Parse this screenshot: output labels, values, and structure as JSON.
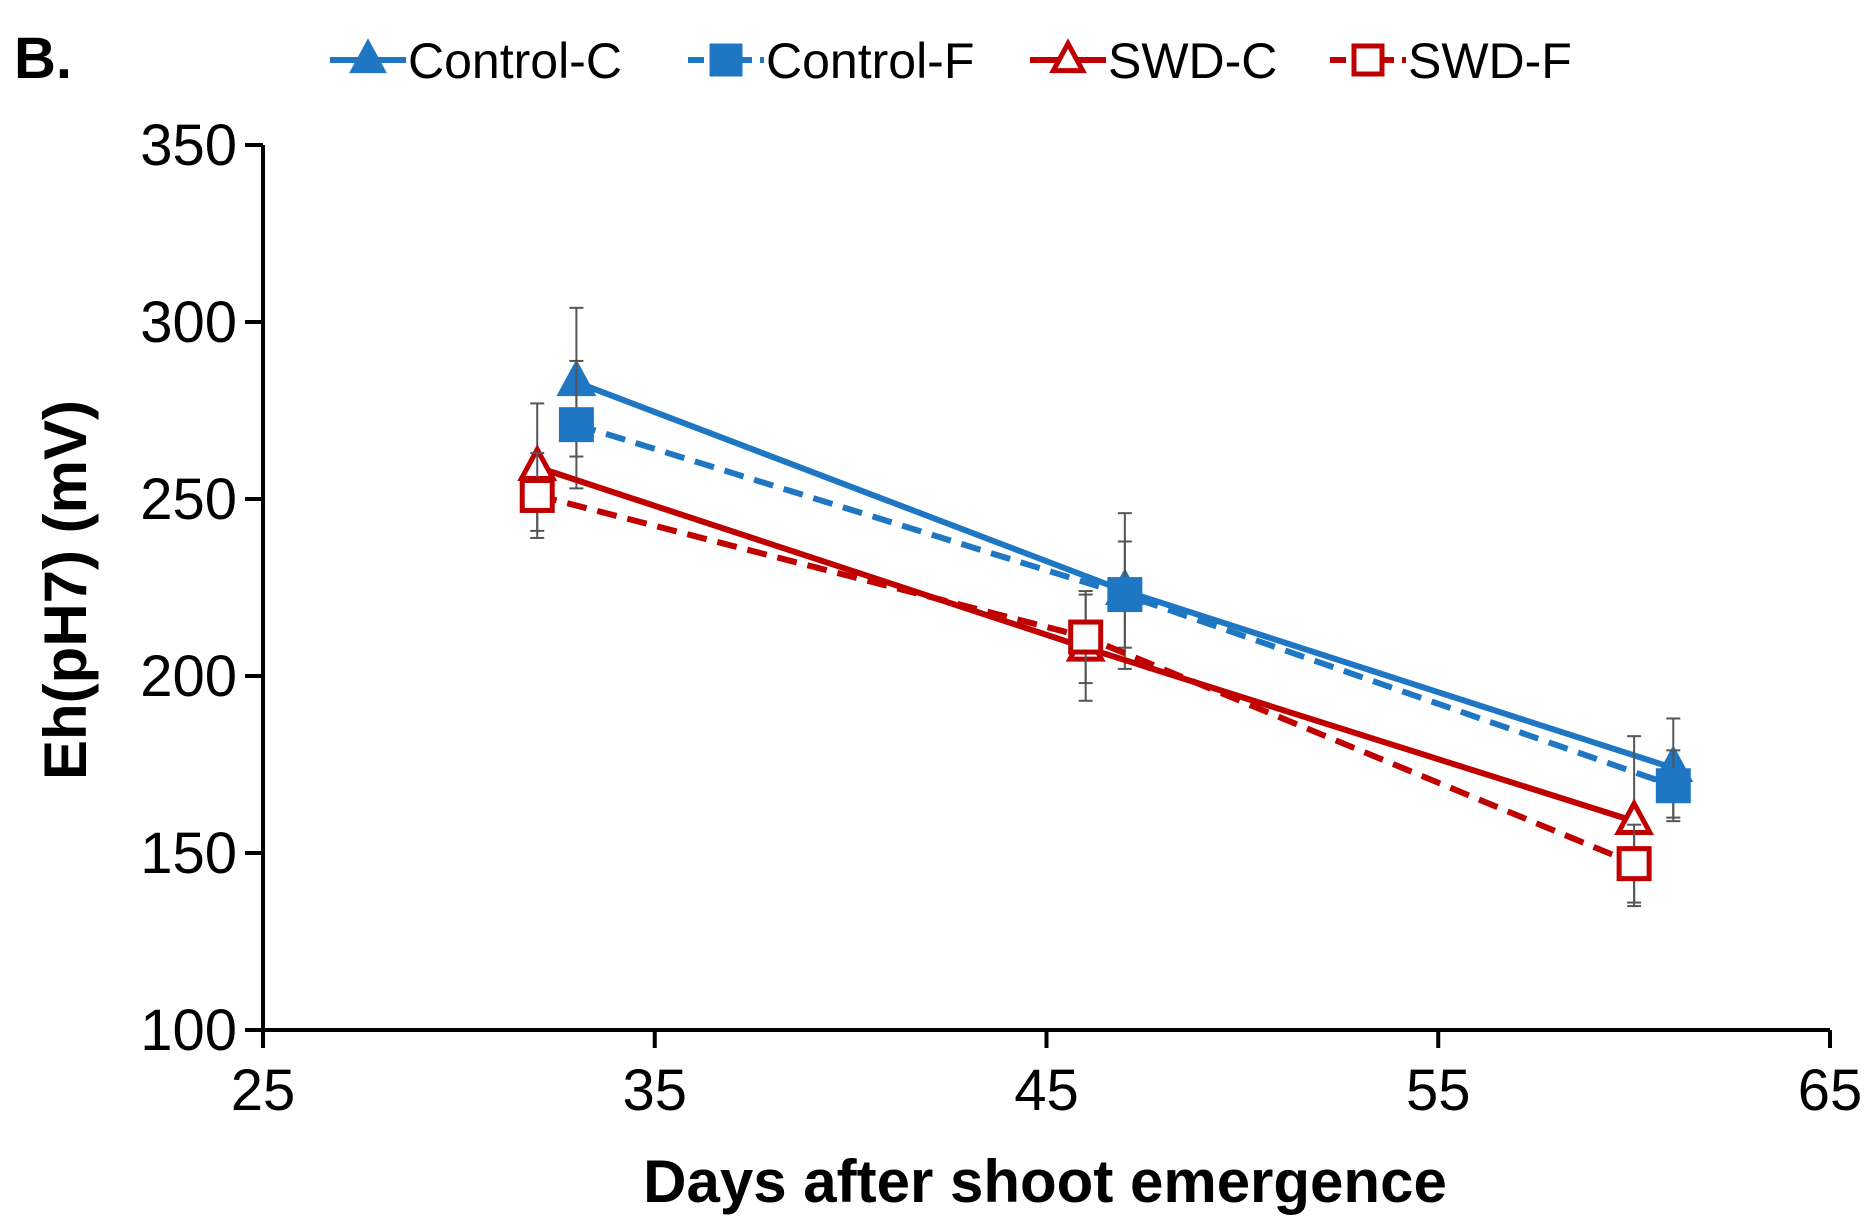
{
  "chart_data": {
    "type": "line",
    "panel_label": "B.",
    "xlabel": "Days after shoot emergence",
    "ylabel": "Eh(pH7) (mV)",
    "xlim": [
      25,
      65
    ],
    "ylim": [
      100,
      350
    ],
    "xticks": [
      25,
      35,
      45,
      55,
      65
    ],
    "yticks": [
      100,
      150,
      200,
      250,
      300,
      350
    ],
    "legend_position": "top",
    "series": [
      {
        "name": "Control-C",
        "color": "#1f77c4",
        "dash": "solid",
        "marker": "triangle",
        "filled": true,
        "x": [
          33,
          47,
          61
        ],
        "y": [
          283,
          224,
          174
        ],
        "err": [
          21,
          22,
          14
        ]
      },
      {
        "name": "Control-F",
        "color": "#1f77c4",
        "dash": "dashed",
        "marker": "square",
        "filled": true,
        "x": [
          33,
          47,
          61
        ],
        "y": [
          271,
          223,
          169
        ],
        "err": [
          18,
          15,
          10
        ]
      },
      {
        "name": "SWD-C",
        "color": "#c00000",
        "dash": "solid",
        "marker": "triangle",
        "filled": false,
        "x": [
          32,
          46,
          60
        ],
        "y": [
          259,
          208,
          159
        ],
        "err": [
          18,
          15,
          24
        ]
      },
      {
        "name": "SWD-F",
        "color": "#c00000",
        "dash": "dashed",
        "marker": "square",
        "filled": false,
        "x": [
          32,
          46,
          60
        ],
        "y": [
          251,
          211,
          147
        ],
        "err": [
          12,
          13,
          11
        ]
      }
    ]
  }
}
